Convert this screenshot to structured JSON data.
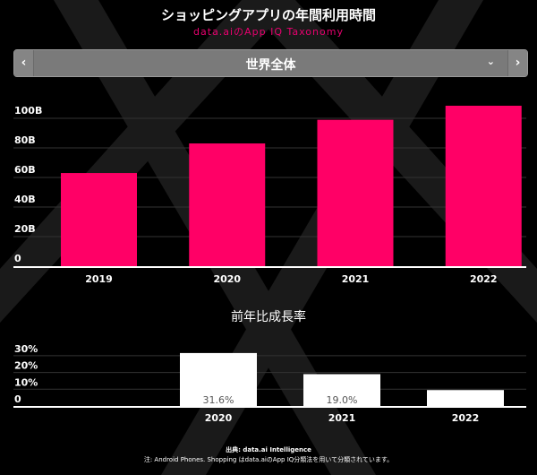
{
  "header": {
    "title": "ショッピングアプリの年間利用時間",
    "subtitle": "data.aiのApp IQ Taxonomy"
  },
  "selector": {
    "value": "世界全体",
    "prev_icon": "chevron-left-icon",
    "next_icon": "chevron-right-icon",
    "dropdown_icon": "chevron-down-icon"
  },
  "colors": {
    "accent": "#ff0066",
    "growth_bar": "#ffffff",
    "background": "#000000"
  },
  "chart_data": [
    {
      "type": "bar",
      "title": "",
      "categories": [
        "2019",
        "2020",
        "2021",
        "2022"
      ],
      "values": [
        63,
        83,
        99,
        108.5
      ],
      "unit": "B",
      "yticks": [
        "0",
        "20B",
        "40B",
        "60B",
        "80B",
        "100B"
      ],
      "ylim": [
        0,
        110
      ],
      "grid": true
    },
    {
      "type": "bar",
      "title": "前年比成長率",
      "categories": [
        "2020",
        "2021",
        "2022"
      ],
      "values": [
        31.6,
        19.0,
        9.5
      ],
      "data_labels": [
        "31.6%",
        "19.0%",
        ""
      ],
      "yticks": [
        "0",
        "10%",
        "20%",
        "30%"
      ],
      "ylim": [
        0,
        32
      ],
      "grid": true
    }
  ],
  "footer": {
    "source": "出典: data.ai Intelligence",
    "note": "注: Android Phones. Shopping はdata.aiのApp IQ分類法を用いて分類されています。"
  }
}
